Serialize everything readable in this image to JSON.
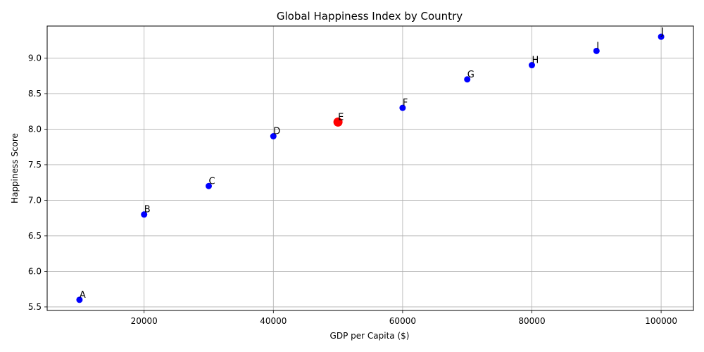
{
  "chart_data": {
    "type": "scatter",
    "title": "Global Happiness Index by Country",
    "xlabel": "GDP per Capita ($)",
    "ylabel": "Happiness Score",
    "xlim": [
      5000,
      105000
    ],
    "ylim": [
      5.45,
      9.45
    ],
    "xticks": [
      20000,
      40000,
      60000,
      80000,
      100000
    ],
    "yticks": [
      5.5,
      6.0,
      6.5,
      7.0,
      7.5,
      8.0,
      8.5,
      9.0
    ],
    "grid": true,
    "colors": {
      "default": "#0000ff",
      "highlight": "#ff0000"
    },
    "points": [
      {
        "label": "A",
        "x": 10000,
        "y": 5.6,
        "highlight": false
      },
      {
        "label": "B",
        "x": 20000,
        "y": 6.8,
        "highlight": false
      },
      {
        "label": "C",
        "x": 30000,
        "y": 7.2,
        "highlight": false
      },
      {
        "label": "D",
        "x": 40000,
        "y": 7.9,
        "highlight": false
      },
      {
        "label": "E",
        "x": 50000,
        "y": 8.1,
        "highlight": true
      },
      {
        "label": "F",
        "x": 60000,
        "y": 8.3,
        "highlight": false
      },
      {
        "label": "G",
        "x": 70000,
        "y": 8.7,
        "highlight": false
      },
      {
        "label": "H",
        "x": 80000,
        "y": 8.9,
        "highlight": false
      },
      {
        "label": "I",
        "x": 90000,
        "y": 9.1,
        "highlight": false
      },
      {
        "label": "J",
        "x": 100000,
        "y": 9.3,
        "highlight": false
      }
    ]
  }
}
